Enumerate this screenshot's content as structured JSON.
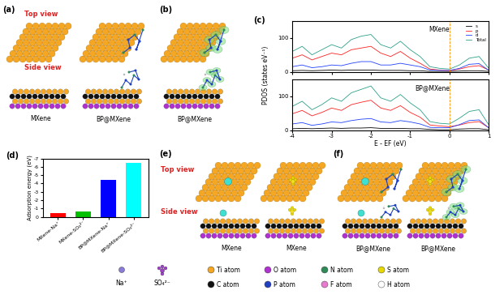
{
  "panels": {
    "a": {
      "label": "(a)",
      "views": [
        "Top view",
        "Side view"
      ],
      "structures": [
        "MXene",
        "BP@MXene"
      ]
    },
    "b": {
      "label": "(b)",
      "structures": [
        "BP@MXene"
      ]
    },
    "e": {
      "label": "(e)",
      "views": [
        "Top view",
        "Side view"
      ],
      "structures": [
        "MXene",
        "MXene"
      ]
    },
    "f": {
      "label": "(f)",
      "structures": [
        "BP@MXene",
        "BP@MXene"
      ]
    }
  },
  "legend_items": [
    {
      "name": "Na⁺",
      "color": "#8a7bd8"
    },
    {
      "name": "SO₄²⁻",
      "color": "#a040c8"
    },
    {
      "name": "Ti atom",
      "color": "#f5a623"
    },
    {
      "name": "O atom",
      "color": "#b030d0"
    },
    {
      "name": "N atom",
      "color": "#2e8b57"
    },
    {
      "name": "S atom",
      "color": "#e6d800"
    },
    {
      "name": "C atom",
      "color": "#111111"
    },
    {
      "name": "P atom",
      "color": "#2040c0"
    },
    {
      "name": "F atom",
      "color": "#e87bd0"
    },
    {
      "name": "H atom",
      "color": "#ffffff"
    }
  ],
  "chart_data": [
    {
      "type": "line",
      "panel": "(c)",
      "title": "MXene",
      "x": [
        -4.0,
        -3.75,
        -3.5,
        -3.25,
        -3.0,
        -2.75,
        -2.5,
        -2.25,
        -2.0,
        -1.75,
        -1.5,
        -1.25,
        -1.0,
        -0.75,
        -0.5,
        -0.25,
        0.0,
        0.25,
        0.5,
        0.75,
        1.0
      ],
      "xlim": [
        -4,
        1
      ],
      "xticks": [
        -4,
        -3,
        -2,
        -1,
        0,
        1
      ],
      "ylim": [
        0,
        150
      ],
      "yticks": [
        0,
        100
      ],
      "vline": 0,
      "tick_labels": "y",
      "legend": "upper right",
      "series": [
        {
          "name": "s",
          "color": "#000000",
          "values": [
            3,
            4,
            3,
            4,
            5,
            4,
            5,
            5,
            5,
            4,
            4,
            4,
            3,
            3,
            1,
            1,
            1,
            2,
            3,
            3,
            1
          ]
        },
        {
          "name": "p",
          "color": "#ff2020",
          "values": [
            40,
            50,
            35,
            45,
            55,
            50,
            65,
            70,
            75,
            55,
            45,
            60,
            40,
            25,
            8,
            5,
            3,
            8,
            15,
            18,
            5
          ]
        },
        {
          "name": "d",
          "color": "#2040ff",
          "values": [
            15,
            20,
            12,
            15,
            20,
            18,
            25,
            30,
            30,
            20,
            20,
            25,
            20,
            15,
            5,
            4,
            4,
            10,
            22,
            24,
            4
          ]
        },
        {
          "name": "Total",
          "color": "#2ca089",
          "values": [
            60,
            75,
            50,
            65,
            80,
            70,
            95,
            105,
            110,
            80,
            70,
            90,
            65,
            45,
            15,
            10,
            8,
            20,
            40,
            45,
            10
          ]
        }
      ]
    },
    {
      "type": "line",
      "title": "BP@MXene",
      "x_label": "E - EF (eV)",
      "y_label": "PDOS (states eV⁻¹)",
      "x": [
        -4.0,
        -3.75,
        -3.5,
        -3.25,
        -3.0,
        -2.75,
        -2.5,
        -2.25,
        -2.0,
        -1.75,
        -1.5,
        -1.25,
        -1.0,
        -0.75,
        -0.5,
        -0.25,
        0.0,
        0.25,
        0.5,
        0.75,
        1.0
      ],
      "xlim": [
        -4,
        1
      ],
      "xticks": [
        -4,
        -3,
        -2,
        -1,
        0,
        1
      ],
      "ylim": [
        0,
        150
      ],
      "yticks": [
        0,
        100
      ],
      "vline": 0,
      "series": [
        {
          "name": "s",
          "color": "#000000",
          "values": [
            4,
            5,
            4,
            5,
            6,
            5,
            6,
            6,
            7,
            5,
            5,
            5,
            4,
            4,
            2,
            1,
            1,
            3,
            4,
            4,
            1
          ]
        },
        {
          "name": "p",
          "color": "#ff2020",
          "values": [
            48,
            58,
            42,
            52,
            65,
            58,
            75,
            82,
            88,
            65,
            58,
            72,
            52,
            38,
            15,
            12,
            10,
            15,
            22,
            25,
            7
          ]
        },
        {
          "name": "d",
          "color": "#2040ff",
          "values": [
            18,
            22,
            14,
            18,
            24,
            22,
            28,
            32,
            34,
            24,
            22,
            28,
            24,
            18,
            8,
            7,
            7,
            16,
            28,
            30,
            6
          ]
        },
        {
          "name": "Total",
          "color": "#2ca089",
          "values": [
            70,
            85,
            60,
            75,
            95,
            85,
            110,
            120,
            130,
            95,
            85,
            105,
            80,
            60,
            25,
            20,
            18,
            35,
            55,
            60,
            15
          ]
        }
      ]
    },
    {
      "type": "bar",
      "panel": "(d)",
      "categories": [
        "MXene-Na⁺",
        "MXene-SO₄²⁻",
        "BP@MXene-Na⁺",
        "BP@MXene-SO₄²⁻"
      ],
      "values": [
        -0.45,
        -0.65,
        -4.4,
        -6.45
      ],
      "colors": [
        "#ff0000",
        "#00c000",
        "#0000ff",
        "#00ffff"
      ],
      "ylim": [
        0,
        -7
      ],
      "yticks": [
        0,
        -1,
        -2,
        -3,
        -4,
        -5,
        -6,
        -7
      ],
      "y_label": "Adsorption energy (eV)"
    }
  ]
}
